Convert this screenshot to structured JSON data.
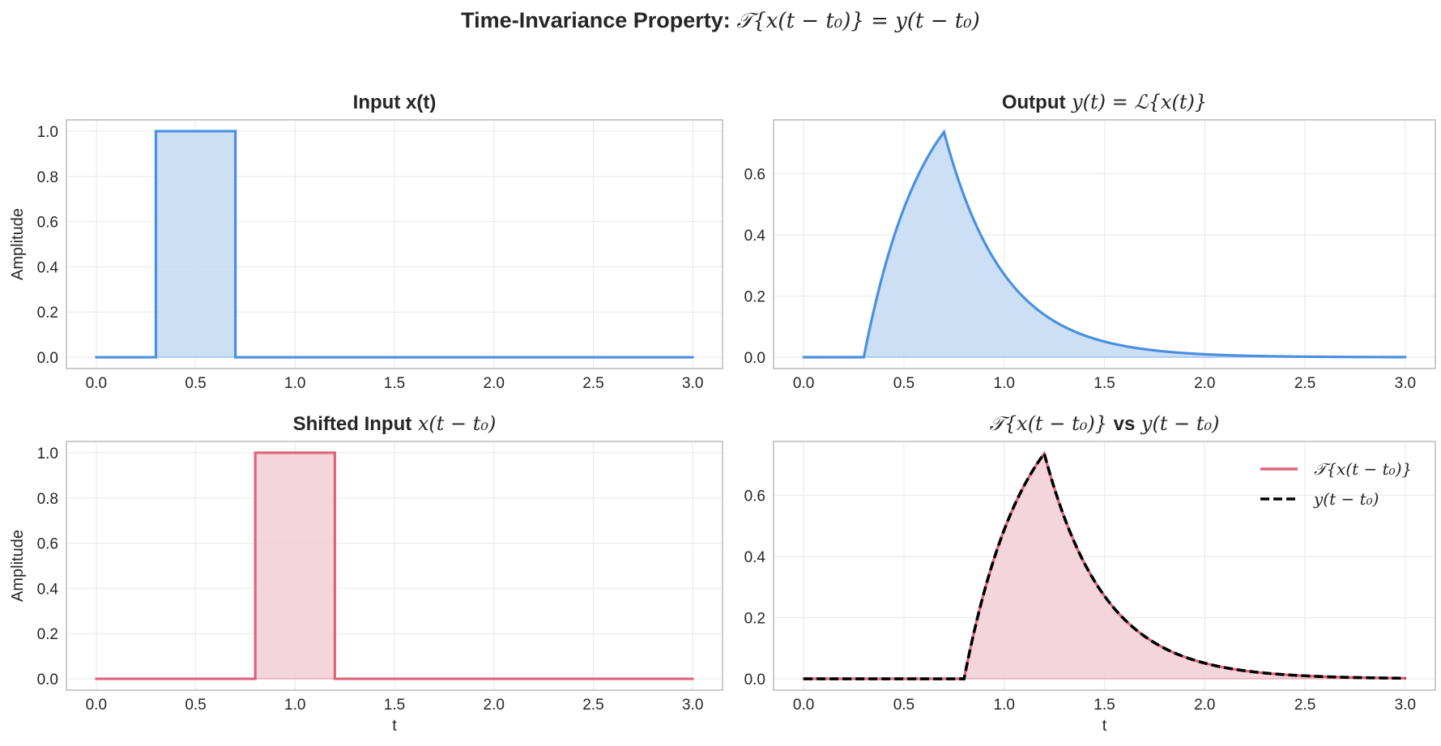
{
  "figure": {
    "suptitle_bold": "Time-Invariance Property:",
    "suptitle_math": "𝒯{x(t − t₀)} = y(t − t₀)"
  },
  "colors": {
    "blue": "#4a90e2",
    "blue_fill": "#c6dcf4",
    "red": "#dc6479",
    "red_fill": "#f4d0d8",
    "black": "#000000",
    "grid": "#ebebeb",
    "frame": "#cccccc",
    "text": "#262626"
  },
  "panels": {
    "tl": {
      "title_bold": "Input x(t)",
      "title_math": "",
      "ylabel": "Amplitude",
      "xlabel": ""
    },
    "tr": {
      "title_bold": "Output",
      "title_math": "y(t) = ℒ{x(t)}",
      "ylabel": "",
      "xlabel": ""
    },
    "bl": {
      "title_bold": "Shifted Input",
      "title_math": "x(t − t₀)",
      "ylabel": "Amplitude",
      "xlabel": "t"
    },
    "br": {
      "title_math_pre": "𝒯{x(t − t₀)}",
      "title_bold": "vs",
      "title_math": "y(t − t₀)",
      "ylabel": "",
      "xlabel": "t"
    }
  },
  "legend": {
    "items": [
      {
        "label": "𝒯{x(t − t₀)}",
        "style": "solid",
        "color": "#dc6479"
      },
      {
        "label": "y(t − t₀)",
        "style": "dashed",
        "color": "#000000"
      }
    ]
  },
  "chart_data": [
    {
      "type": "line",
      "panel": "tl",
      "title": "Input x(t)",
      "xlabel": "",
      "ylabel": "Amplitude",
      "xlim": [
        -0.15,
        3.15
      ],
      "ylim": [
        -0.05,
        1.05
      ],
      "xticks": [
        0.0,
        0.5,
        1.0,
        1.5,
        2.0,
        2.5,
        3.0
      ],
      "yticks": [
        0.0,
        0.2,
        0.4,
        0.6,
        0.8,
        1.0
      ],
      "grid": true,
      "series": [
        {
          "name": "x(t)",
          "kind": "rect",
          "t_start": 0.3,
          "t_end": 0.7,
          "amplitude": 1.0,
          "x": [
            0.0,
            0.3,
            0.3,
            0.7,
            0.7,
            3.0
          ],
          "y": [
            0,
            0,
            1,
            1,
            0,
            0
          ],
          "color": "#4a90e2",
          "fill": true
        }
      ]
    },
    {
      "type": "line",
      "panel": "tr",
      "title": "Output y(t) = L{x(t)}",
      "xlabel": "",
      "ylabel": "",
      "xlim": [
        -0.15,
        3.15
      ],
      "ylim": [
        -0.037,
        0.776
      ],
      "xticks": [
        0.0,
        0.5,
        1.0,
        1.5,
        2.0,
        2.5,
        3.0
      ],
      "yticks": [
        0.0,
        0.2,
        0.4,
        0.6
      ],
      "grid": true,
      "series": [
        {
          "name": "y(t)",
          "kind": "rc_response",
          "t_start": 0.3,
          "t_end": 0.7,
          "tau": 0.3,
          "peak": 0.736,
          "x": [
            0.0,
            0.3,
            0.4,
            0.5,
            0.6,
            0.7,
            0.8,
            0.9,
            1.0,
            1.2,
            1.5,
            2.0,
            2.5,
            3.0
          ],
          "y": [
            0.0,
            0.0,
            0.283,
            0.487,
            0.632,
            0.736,
            0.527,
            0.378,
            0.271,
            0.139,
            0.051,
            0.009,
            0.002,
            0.0
          ],
          "color": "#4a90e2",
          "fill": true
        }
      ]
    },
    {
      "type": "line",
      "panel": "bl",
      "title": "Shifted Input x(t − t0)",
      "xlabel": "t",
      "ylabel": "Amplitude",
      "xlim": [
        -0.15,
        3.15
      ],
      "ylim": [
        -0.05,
        1.05
      ],
      "xticks": [
        0.0,
        0.5,
        1.0,
        1.5,
        2.0,
        2.5,
        3.0
      ],
      "yticks": [
        0.0,
        0.2,
        0.4,
        0.6,
        0.8,
        1.0
      ],
      "grid": true,
      "series": [
        {
          "name": "x(t - t0)",
          "kind": "rect",
          "t_start": 0.8,
          "t_end": 1.2,
          "amplitude": 1.0,
          "x": [
            0.0,
            0.8,
            0.8,
            1.2,
            1.2,
            3.0
          ],
          "y": [
            0,
            0,
            1,
            1,
            0,
            0
          ],
          "color": "#dc6479",
          "fill": true
        }
      ]
    },
    {
      "type": "line",
      "panel": "br",
      "title": "T{x(t − t0)} vs y(t − t0)",
      "xlabel": "t",
      "ylabel": "",
      "xlim": [
        -0.15,
        3.15
      ],
      "ylim": [
        -0.037,
        0.776
      ],
      "xticks": [
        0.0,
        0.5,
        1.0,
        1.5,
        2.0,
        2.5,
        3.0
      ],
      "yticks": [
        0.0,
        0.2,
        0.4,
        0.6
      ],
      "grid": true,
      "legend_position": "upper right",
      "series": [
        {
          "name": "T{x(t - t0)}",
          "kind": "rc_response",
          "t_start": 0.8,
          "t_end": 1.2,
          "tau": 0.3,
          "peak": 0.736,
          "x": [
            0.0,
            0.8,
            0.9,
            1.0,
            1.1,
            1.2,
            1.3,
            1.4,
            1.5,
            1.7,
            2.0,
            2.5,
            3.0
          ],
          "y": [
            0.0,
            0.0,
            0.283,
            0.487,
            0.632,
            0.736,
            0.527,
            0.378,
            0.271,
            0.139,
            0.05,
            0.009,
            0.001
          ],
          "color": "#dc6479",
          "style": "solid",
          "fill": true
        },
        {
          "name": "y(t - t0)",
          "kind": "rc_response",
          "t_start": 0.8,
          "t_end": 1.2,
          "tau": 0.3,
          "peak": 0.736,
          "x": [
            0.0,
            0.8,
            0.9,
            1.0,
            1.1,
            1.2,
            1.3,
            1.4,
            1.5,
            1.7,
            2.0,
            2.5,
            3.0
          ],
          "y": [
            0.0,
            0.0,
            0.283,
            0.487,
            0.632,
            0.736,
            0.527,
            0.378,
            0.271,
            0.139,
            0.05,
            0.009,
            0.001
          ],
          "color": "#000000",
          "style": "dashed",
          "fill": false
        }
      ]
    }
  ]
}
